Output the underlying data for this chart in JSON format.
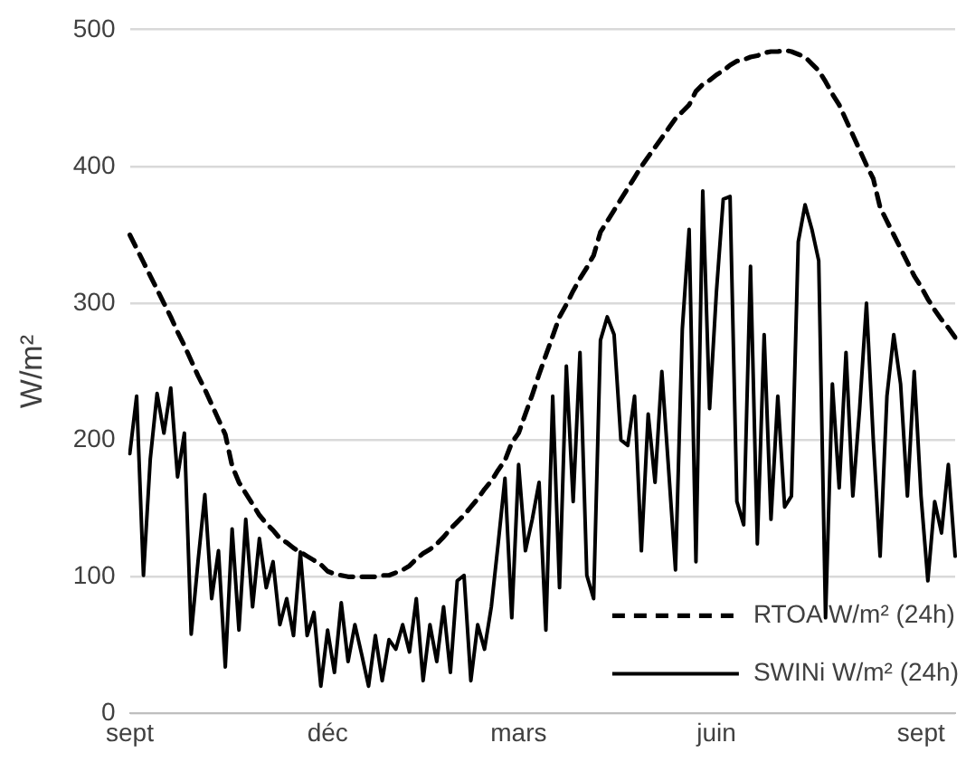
{
  "chart_data": {
    "type": "line",
    "ylabel": "W/m²",
    "ylim": [
      0,
      500
    ],
    "yticks": [
      0,
      100,
      200,
      300,
      400,
      500
    ],
    "categories": [
      "sept",
      null,
      null,
      null,
      null,
      null,
      null,
      null,
      null,
      null,
      null,
      null,
      null,
      null,
      null,
      null,
      null,
      null,
      null,
      null,
      null,
      null,
      null,
      null,
      null,
      null,
      null,
      null,
      null,
      "déc",
      null,
      null,
      null,
      null,
      null,
      null,
      null,
      null,
      null,
      null,
      null,
      null,
      null,
      null,
      null,
      null,
      null,
      null,
      null,
      null,
      null,
      null,
      null,
      null,
      null,
      null,
      null,
      "mars",
      null,
      null,
      null,
      null,
      null,
      null,
      null,
      null,
      null,
      null,
      null,
      null,
      null,
      null,
      null,
      null,
      null,
      null,
      null,
      null,
      null,
      null,
      null,
      null,
      null,
      null,
      null,
      null,
      "juin",
      null,
      null,
      null,
      null,
      null,
      null,
      null,
      null,
      null,
      null,
      null,
      null,
      null,
      null,
      null,
      null,
      null,
      null,
      null,
      null,
      null,
      null,
      null,
      null,
      null,
      null,
      null,
      null,
      null,
      "sept",
      null,
      null,
      null,
      null,
      null
    ],
    "grid": "y",
    "legend": "bottom right",
    "marker": "none",
    "series": [
      {
        "name": "RTOA W/m² (24h)",
        "color": "#000000",
        "line_style": "dashed",
        "values": [
          350,
          340,
          330,
          320,
          310,
          300,
          290,
          279,
          269,
          258,
          247,
          237,
          226,
          215,
          204,
          181,
          169,
          161,
          153,
          145,
          139,
          134,
          128,
          125,
          121,
          118,
          115,
          112,
          109,
          104,
          102,
          101,
          100,
          100,
          100,
          100,
          100,
          101,
          101,
          103,
          105,
          108,
          113,
          117,
          120,
          124,
          129,
          135,
          140,
          145,
          151,
          157,
          164,
          170,
          178,
          185,
          198,
          205,
          219,
          233,
          248,
          262,
          276,
          290,
          299,
          309,
          318,
          326,
          335,
          352,
          360,
          368,
          376,
          384,
          392,
          400,
          407,
          414,
          421,
          428,
          435,
          440,
          445,
          455,
          460,
          463,
          467,
          470,
          474,
          477,
          478,
          480,
          481,
          483,
          484,
          484,
          485,
          484,
          482,
          480,
          475,
          470,
          462,
          453,
          445,
          434,
          423,
          412,
          401,
          391,
          370,
          360,
          350,
          340,
          330,
          320,
          312,
          303,
          295,
          288,
          282,
          275
        ]
      },
      {
        "name": "SWINi W/m² (24h)",
        "color": "#000000",
        "line_style": "solid",
        "values": [
          190,
          232,
          101,
          186,
          234,
          205,
          238,
          173,
          205,
          58,
          111,
          160,
          84,
          119,
          34,
          135,
          61,
          142,
          78,
          128,
          92,
          111,
          65,
          84,
          57,
          118,
          57,
          74,
          20,
          61,
          30,
          81,
          38,
          65,
          43,
          20,
          57,
          24,
          54,
          47,
          65,
          45,
          84,
          24,
          65,
          38,
          78,
          30,
          97,
          101,
          24,
          65,
          47,
          78,
          124,
          172,
          70,
          182,
          119,
          142,
          169,
          61,
          232,
          92,
          254,
          155,
          264,
          101,
          84,
          273,
          290,
          277,
          200,
          196,
          232,
          119,
          219,
          169,
          250,
          178,
          105,
          281,
          354,
          111,
          382,
          223,
          308,
          376,
          378,
          155,
          138,
          327,
          124,
          277,
          142,
          232,
          151,
          159,
          345,
          372,
          354,
          331,
          70,
          241,
          165,
          264,
          159,
          223,
          300,
          200,
          115,
          232,
          277,
          241,
          159,
          250,
          159,
          97,
          155,
          132,
          182,
          115
        ]
      }
    ]
  }
}
